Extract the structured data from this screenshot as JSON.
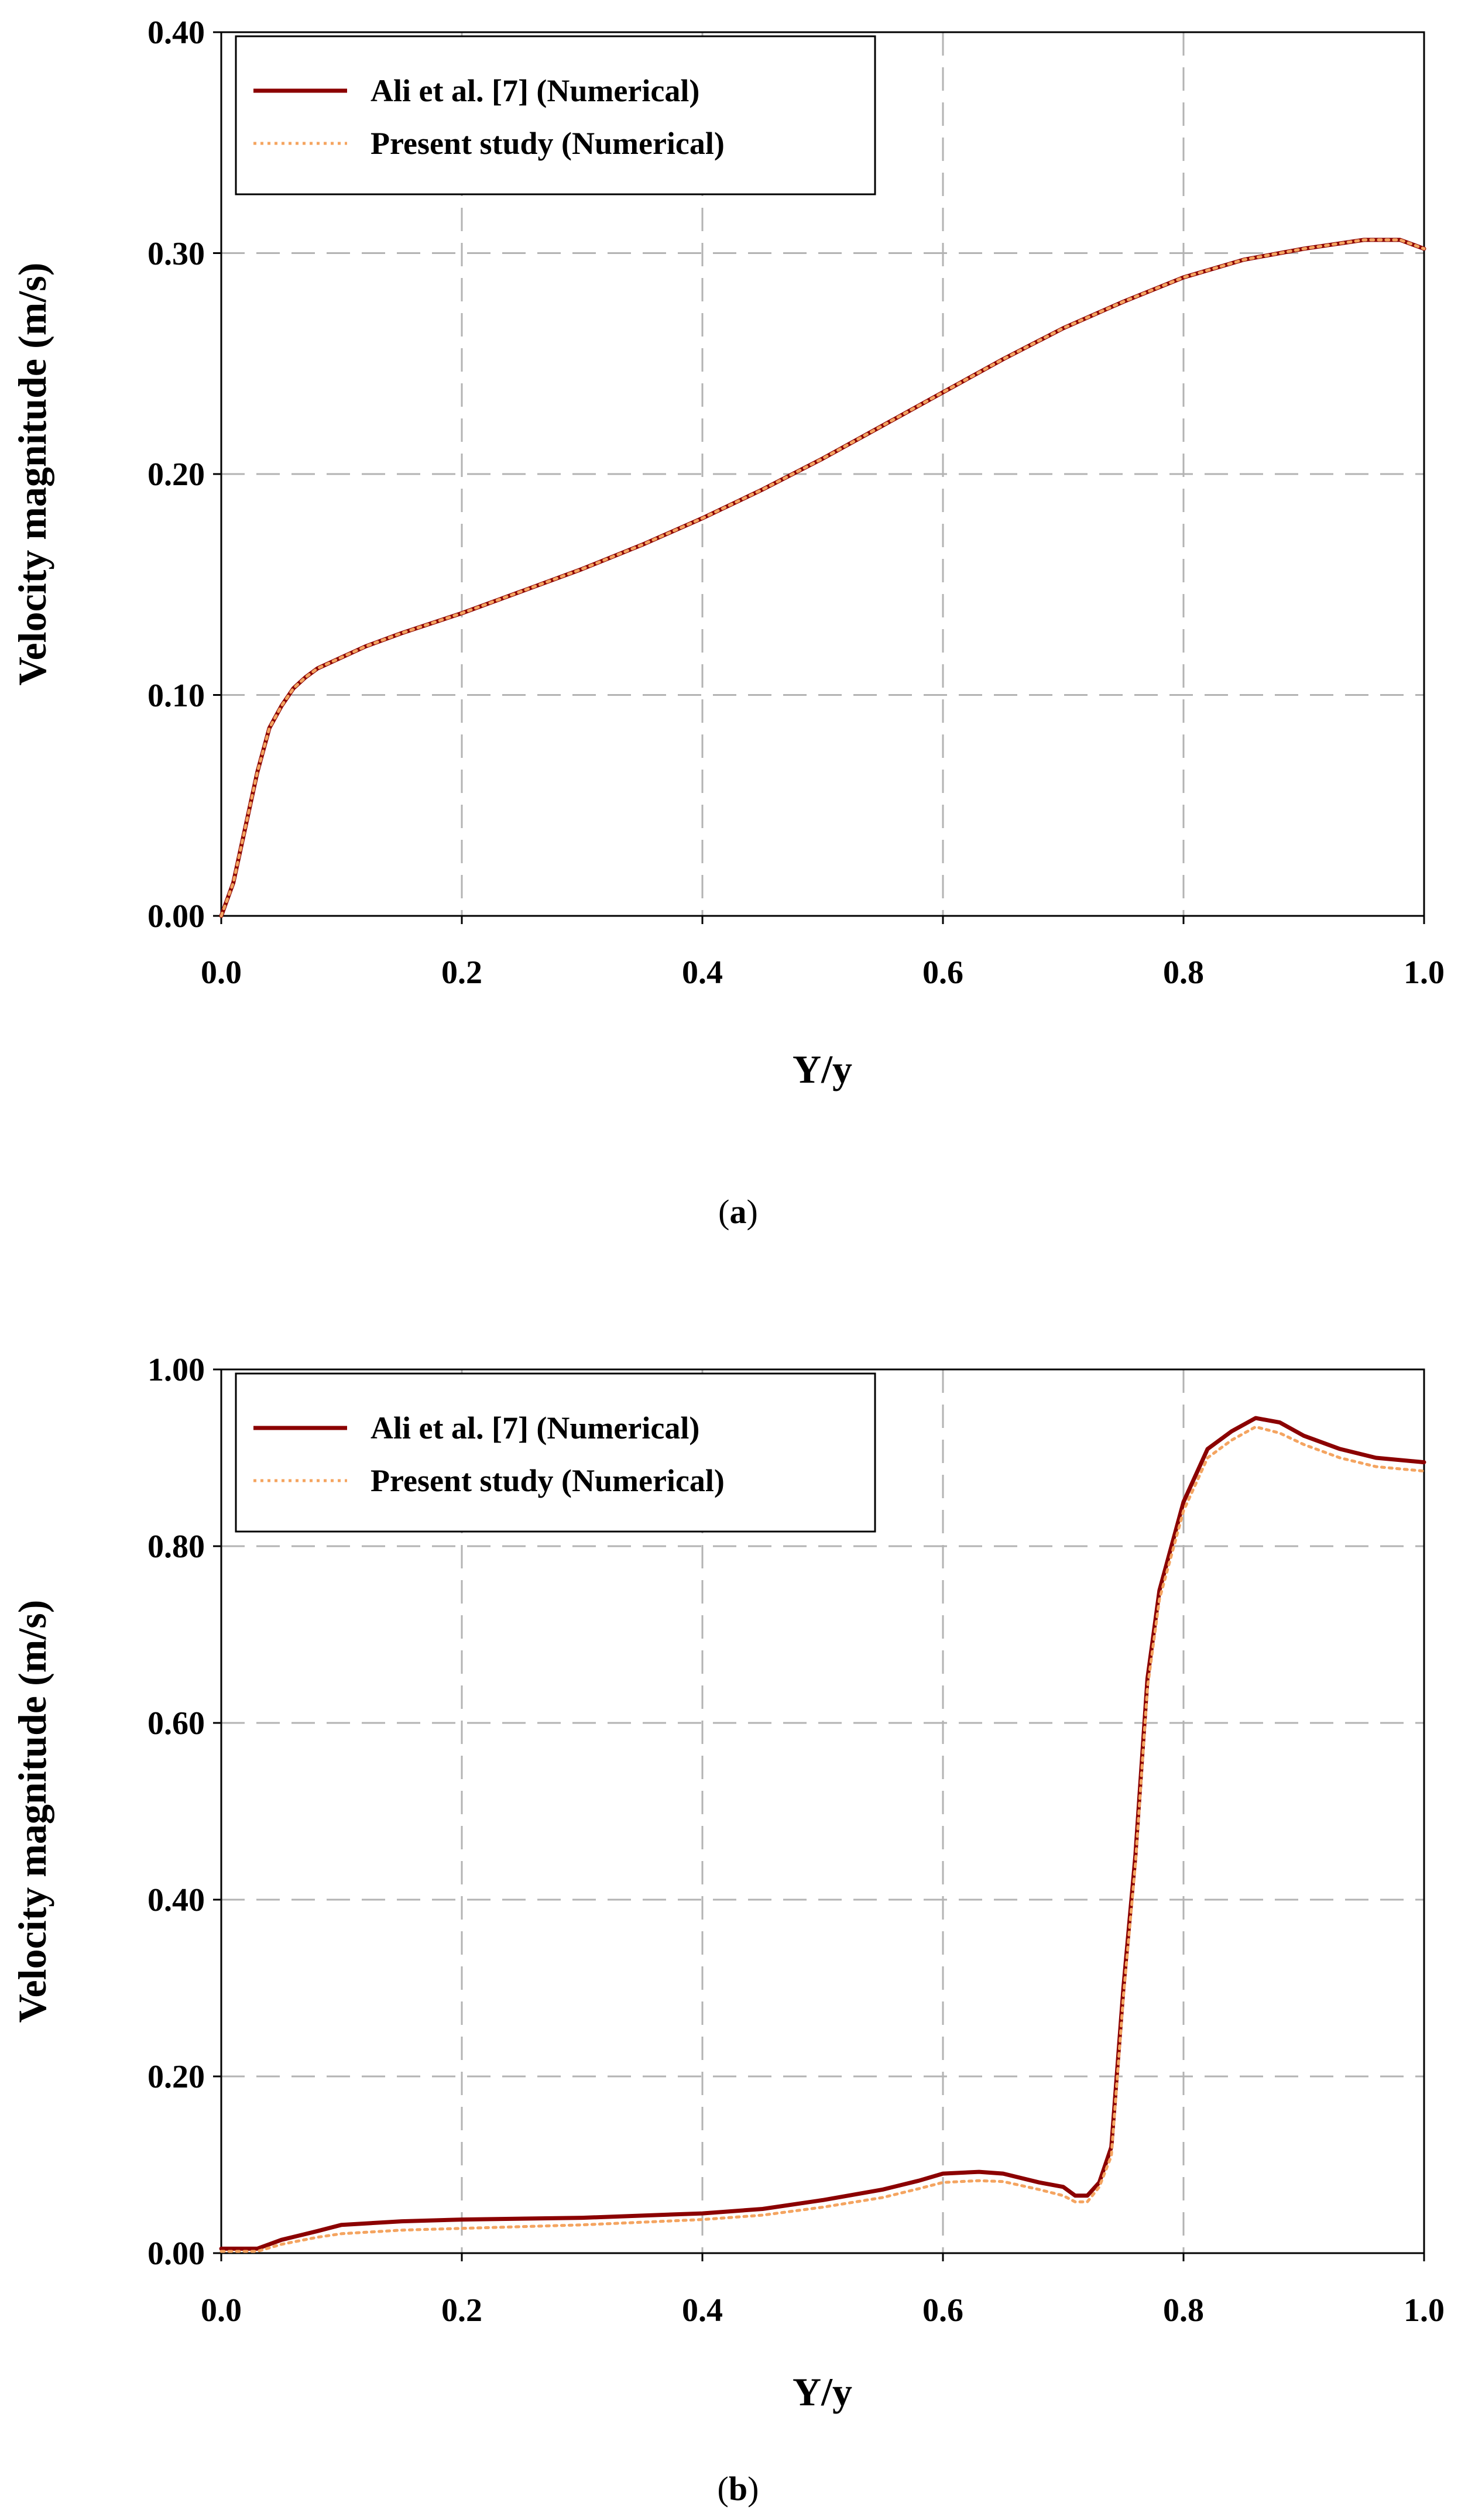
{
  "figure": {
    "captions": [
      "a",
      "b"
    ]
  },
  "colors": {
    "reference_line": "#8b0000",
    "present_line": "#f4a460",
    "grid": "#b3b3b3",
    "frame": "#000000"
  },
  "chart_data": [
    {
      "type": "line",
      "caption": "a",
      "xlabel": "Y/y",
      "ylabel": "Velocity magnitude (m/s)",
      "xlim": [
        0,
        1
      ],
      "ylim": [
        0,
        0.4
      ],
      "xticks": [
        "0.0",
        "0.2",
        "0.4",
        "0.6",
        "0.8",
        "1.0"
      ],
      "yticks": [
        "0.00",
        "0.10",
        "0.20",
        "0.30",
        "0.40"
      ],
      "grid": true,
      "legend_position": "top-left",
      "series": [
        {
          "name": "Ali et al. [7] (Numerical)",
          "style": "solid",
          "color": "#8b0000",
          "x": [
            0.0,
            0.01,
            0.02,
            0.03,
            0.04,
            0.05,
            0.06,
            0.07,
            0.08,
            0.1,
            0.12,
            0.15,
            0.2,
            0.25,
            0.3,
            0.35,
            0.4,
            0.45,
            0.5,
            0.55,
            0.6,
            0.65,
            0.7,
            0.75,
            0.8,
            0.85,
            0.9,
            0.95,
            0.98,
            1.0
          ],
          "y": [
            0.0,
            0.015,
            0.04,
            0.065,
            0.085,
            0.095,
            0.103,
            0.108,
            0.112,
            0.117,
            0.122,
            0.128,
            0.137,
            0.147,
            0.157,
            0.168,
            0.18,
            0.193,
            0.207,
            0.222,
            0.237,
            0.252,
            0.266,
            0.278,
            0.289,
            0.297,
            0.302,
            0.306,
            0.306,
            0.302
          ]
        },
        {
          "name": "Present study (Numerical)",
          "style": "dotted",
          "color": "#f4a460",
          "x": [
            0.0,
            0.01,
            0.02,
            0.03,
            0.04,
            0.05,
            0.06,
            0.07,
            0.08,
            0.1,
            0.12,
            0.15,
            0.2,
            0.25,
            0.3,
            0.35,
            0.4,
            0.45,
            0.5,
            0.55,
            0.6,
            0.65,
            0.7,
            0.75,
            0.8,
            0.85,
            0.9,
            0.95,
            0.98,
            1.0
          ],
          "y": [
            0.0,
            0.015,
            0.04,
            0.065,
            0.085,
            0.095,
            0.103,
            0.108,
            0.112,
            0.117,
            0.122,
            0.128,
            0.137,
            0.147,
            0.157,
            0.168,
            0.18,
            0.193,
            0.207,
            0.222,
            0.237,
            0.252,
            0.266,
            0.278,
            0.289,
            0.297,
            0.302,
            0.306,
            0.306,
            0.302
          ]
        }
      ]
    },
    {
      "type": "line",
      "caption": "b",
      "xlabel": "Y/y",
      "ylabel": "Velocity magnitude (m/s)",
      "xlim": [
        0,
        1
      ],
      "ylim": [
        0,
        1
      ],
      "xticks": [
        "0.0",
        "0.2",
        "0.4",
        "0.6",
        "0.8",
        "1.0"
      ],
      "yticks": [
        "0.00",
        "0.20",
        "0.40",
        "0.60",
        "0.80",
        "1.00"
      ],
      "grid": true,
      "legend_position": "top-left",
      "series": [
        {
          "name": "Ali et al. [7] (Numerical)",
          "style": "solid",
          "color": "#8b0000",
          "x": [
            0.0,
            0.02,
            0.03,
            0.05,
            0.08,
            0.1,
            0.15,
            0.2,
            0.3,
            0.4,
            0.45,
            0.5,
            0.55,
            0.58,
            0.6,
            0.63,
            0.65,
            0.68,
            0.7,
            0.71,
            0.72,
            0.73,
            0.74,
            0.75,
            0.76,
            0.77,
            0.78,
            0.8,
            0.82,
            0.84,
            0.86,
            0.88,
            0.9,
            0.93,
            0.96,
            1.0
          ],
          "y": [
            0.005,
            0.005,
            0.005,
            0.015,
            0.025,
            0.032,
            0.036,
            0.038,
            0.04,
            0.045,
            0.05,
            0.06,
            0.072,
            0.082,
            0.09,
            0.092,
            0.09,
            0.08,
            0.075,
            0.065,
            0.065,
            0.08,
            0.12,
            0.3,
            0.45,
            0.65,
            0.75,
            0.85,
            0.91,
            0.93,
            0.945,
            0.94,
            0.925,
            0.91,
            0.9,
            0.895
          ]
        },
        {
          "name": "Present study (Numerical)",
          "style": "dotted",
          "color": "#f4a460",
          "x": [
            0.0,
            0.02,
            0.03,
            0.05,
            0.08,
            0.1,
            0.15,
            0.2,
            0.3,
            0.4,
            0.45,
            0.5,
            0.55,
            0.58,
            0.6,
            0.63,
            0.65,
            0.68,
            0.7,
            0.71,
            0.72,
            0.73,
            0.74,
            0.75,
            0.76,
            0.77,
            0.78,
            0.8,
            0.82,
            0.84,
            0.86,
            0.88,
            0.9,
            0.93,
            0.96,
            1.0
          ],
          "y": [
            0.002,
            0.002,
            0.002,
            0.01,
            0.018,
            0.022,
            0.026,
            0.028,
            0.032,
            0.038,
            0.043,
            0.052,
            0.063,
            0.073,
            0.08,
            0.082,
            0.081,
            0.072,
            0.065,
            0.058,
            0.058,
            0.075,
            0.11,
            0.29,
            0.44,
            0.64,
            0.74,
            0.84,
            0.9,
            0.92,
            0.935,
            0.928,
            0.915,
            0.9,
            0.89,
            0.885
          ]
        }
      ]
    }
  ]
}
